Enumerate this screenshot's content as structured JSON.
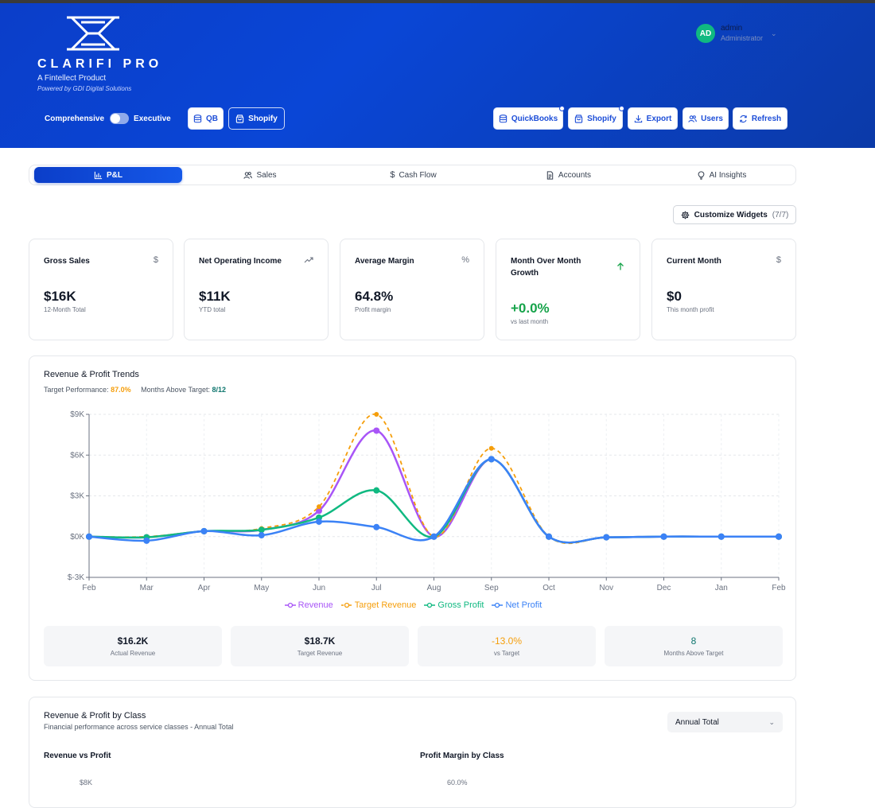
{
  "header": {
    "brand_name": "CLARIFI PRO",
    "brand_sub": "A Fintellect Product",
    "brand_powered": "Powered by GDI Digital Solutions",
    "user": {
      "initials": "AD",
      "name": "admin",
      "role": "Administrator"
    },
    "mode_left": "Comprehensive",
    "mode_right": "Executive",
    "left_buttons": [
      {
        "label": "QB",
        "icon": "database-icon"
      },
      {
        "label": "Shopify",
        "icon": "shopping-bag-icon"
      }
    ],
    "right_buttons": [
      {
        "label": "QuickBooks",
        "icon": "database-icon"
      },
      {
        "label": "Shopify",
        "icon": "shopping-bag-icon"
      },
      {
        "label": "Export",
        "icon": "download-icon"
      },
      {
        "label": "Users",
        "icon": "users-icon"
      },
      {
        "label": "Refresh",
        "icon": "refresh-icon"
      }
    ]
  },
  "tabs": [
    {
      "label": "P&L",
      "icon": "bar-chart-icon",
      "active": true
    },
    {
      "label": "Sales",
      "icon": "users-icon"
    },
    {
      "label": "Cash Flow",
      "icon": "dollar-icon"
    },
    {
      "label": "Accounts",
      "icon": "document-icon"
    },
    {
      "label": "AI Insights",
      "icon": "lightbulb-icon"
    }
  ],
  "customize": {
    "label": "Customize Widgets",
    "count": "(7/7)"
  },
  "kpis": [
    {
      "title": "Gross Sales",
      "icon": "$",
      "value": "$16K",
      "sub": "12-Month Total"
    },
    {
      "title": "Net Operating Income",
      "icon": "trending-up",
      "value": "$11K",
      "sub": "YTD total"
    },
    {
      "title": "Average Margin",
      "icon": "%",
      "value": "64.8%",
      "sub": "Profit margin"
    },
    {
      "title": "Month Over Month Growth",
      "icon": "arrow-up",
      "value": "+0.0%",
      "sub": "vs last month",
      "value_color": "#16a34a"
    },
    {
      "title": "Current Month",
      "icon": "$",
      "value": "$0",
      "sub": "This month profit"
    }
  ],
  "trend_panel": {
    "title": "Revenue & Profit Trends",
    "target_perf_label": "Target Performance:",
    "target_perf_value": "87.0%",
    "months_above_label": "Months Above Target:",
    "months_above_value": "8/12",
    "stats": [
      {
        "value": "$16.2K",
        "label": "Actual Revenue"
      },
      {
        "value": "$18.7K",
        "label": "Target Revenue"
      },
      {
        "value": "-13.0%",
        "label": "vs Target",
        "color": "#f59e0b"
      },
      {
        "value": "8",
        "label": "Months Above Target",
        "color": "#0f766e"
      }
    ]
  },
  "chart_data": {
    "type": "line",
    "x": [
      "Feb",
      "Mar",
      "Apr",
      "May",
      "Jun",
      "Jul",
      "Aug",
      "Sep",
      "Oct",
      "Nov",
      "Dec",
      "Jan",
      "Feb"
    ],
    "ylim": [
      -3000,
      9000
    ],
    "yticks": [
      "$-3K",
      "$0K",
      "$3K",
      "$6K",
      "$9K"
    ],
    "ytick_values": [
      -3000,
      0,
      3000,
      6000,
      9000
    ],
    "grid": true,
    "legend_position": "bottom",
    "series": [
      {
        "name": "Revenue",
        "color": "#a855f7",
        "dashed": false,
        "values": [
          0,
          -50,
          400,
          500,
          1900,
          7800,
          0,
          5700,
          0,
          -50,
          0,
          0,
          0
        ]
      },
      {
        "name": "Target Revenue",
        "color": "#f59e0b",
        "dashed": true,
        "values": [
          0,
          0,
          400,
          600,
          2200,
          9000,
          0,
          6500,
          0,
          -50,
          0,
          0,
          0
        ]
      },
      {
        "name": "Gross Profit",
        "color": "#10b981",
        "dashed": false,
        "values": [
          0,
          -50,
          400,
          500,
          1400,
          3400,
          0,
          5700,
          0,
          -50,
          0,
          0,
          0
        ]
      },
      {
        "name": "Net Profit",
        "color": "#3b82f6",
        "dashed": false,
        "values": [
          0,
          -300,
          400,
          100,
          1100,
          700,
          0,
          5700,
          0,
          -50,
          0,
          0,
          0
        ]
      }
    ]
  },
  "class_panel": {
    "title": "Revenue & Profit by Class",
    "subtitle": "Financial performance across service classes - Annual Total",
    "select_value": "Annual Total",
    "left_heading": "Revenue vs Profit",
    "right_heading": "Profit Margin by Class",
    "left_top_tick": "$8K",
    "right_top_tick": "60.0%"
  }
}
